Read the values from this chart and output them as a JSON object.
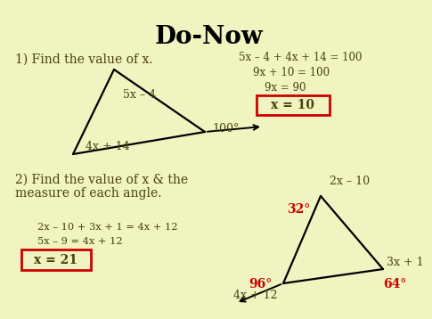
{
  "title": "Do-Now",
  "bg_color": "#f0f4c0",
  "title_fontsize": 20,
  "title_fontweight": "bold",
  "text_color": "#4a4010",
  "red_color": "#cc0000",
  "label1": "1) Find the value of x.",
  "label2_line1": "2) Find the value of x & the",
  "label2_line2": "measure of each angle.",
  "eq1_line1": "5x – 4 + 4x + 14 = 100",
  "eq1_line2": "9x + 10 = 100",
  "eq1_line3": "9x = 90",
  "eq1_answer": "x = 10",
  "eq2_line1": "2x – 10 + 3x + 1 = 4x + 12",
  "eq2_line2": "5x – 9 = 4x + 12",
  "eq2_answer": "x = 21",
  "tri1_label_top": "5x – 4",
  "tri1_label_bottom": "4x + 14",
  "tri1_angle": "100°",
  "tri2_label_top": "2x – 10",
  "tri2_label_right": "3x + 1",
  "tri2_label_bottom": "4x + 12",
  "tri2_angle_top": "32°",
  "tri2_angle_right": "64°",
  "tri2_angle_left": "96°"
}
